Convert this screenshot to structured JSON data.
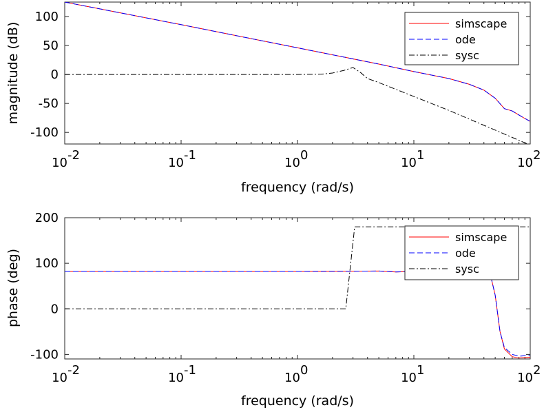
{
  "chart_data": [
    {
      "type": "line",
      "xscale": "log",
      "xlim": [
        0.01,
        100
      ],
      "ylim": [
        -120,
        125
      ],
      "xlabel": "frequency (rad/s)",
      "ylabel": "magnitude (dB)",
      "xtick_bases": [
        "10",
        "10",
        "10",
        "10",
        "10"
      ],
      "xtick_exps": [
        "-2",
        "-1",
        "0",
        "1",
        "2"
      ],
      "xtick_values": [
        0.01,
        0.1,
        1,
        10,
        100
      ],
      "ytick_labels": [
        "100",
        "50",
        "0",
        "-50",
        "-100"
      ],
      "ytick_values": [
        100,
        50,
        0,
        -50,
        -100
      ],
      "legend_position": "top-right",
      "series": [
        {
          "name": "simscape",
          "color": "#ff0000",
          "dash": "solid",
          "x": [
            0.01,
            0.1,
            1,
            5,
            10,
            20,
            30,
            40,
            50,
            60,
            70,
            80,
            90,
            100
          ],
          "y": [
            125,
            86,
            46,
            18,
            5,
            -7,
            -17,
            -27,
            -41,
            -59,
            -63,
            -70,
            -76,
            -81
          ]
        },
        {
          "name": "ode",
          "color": "#0000ff",
          "dash": "dashed",
          "x": [
            0.01,
            0.1,
            1,
            5,
            10,
            20,
            30,
            40,
            50,
            60,
            70,
            80,
            90,
            100
          ],
          "y": [
            125,
            86,
            46,
            18,
            5,
            -7,
            -17,
            -27,
            -41,
            -59,
            -63,
            -70,
            -76,
            -81
          ]
        },
        {
          "name": "sysc",
          "color": "#000000",
          "dash": "dashdot",
          "x": [
            0.01,
            0.1,
            1,
            1.6,
            2,
            2.5,
            3,
            3.5,
            4,
            5,
            10,
            20,
            50,
            100
          ],
          "y": [
            0,
            0,
            0,
            0.5,
            2.5,
            7,
            12,
            3,
            -7,
            -14,
            -38,
            -62,
            -96,
            -122
          ]
        }
      ]
    },
    {
      "type": "line",
      "xscale": "log",
      "xlim": [
        0.01,
        100
      ],
      "ylim": [
        -110,
        200
      ],
      "xlabel": "frequency (rad/s)",
      "ylabel": "phase (deg)",
      "xtick_bases": [
        "10",
        "10",
        "10",
        "10",
        "10"
      ],
      "xtick_exps": [
        "-2",
        "-1",
        "0",
        "1",
        "2"
      ],
      "xtick_values": [
        0.01,
        0.1,
        1,
        10,
        100
      ],
      "ytick_labels": [
        "200",
        "100",
        "0",
        "-100"
      ],
      "ytick_values": [
        200,
        100,
        0,
        -100
      ],
      "legend_position": "top-right",
      "series": [
        {
          "name": "simscape",
          "color": "#ff0000",
          "dash": "solid",
          "x": [
            0.01,
            1,
            5,
            7,
            10,
            20,
            40,
            45,
            50,
            55,
            60,
            70,
            80,
            100
          ],
          "y": [
            82,
            82,
            83,
            81,
            82,
            82,
            82,
            80,
            30,
            -50,
            -88,
            -105,
            -108,
            -106
          ]
        },
        {
          "name": "ode",
          "color": "#0000ff",
          "dash": "dashed",
          "x": [
            0.01,
            1,
            5,
            7,
            10,
            20,
            40,
            45,
            50,
            55,
            60,
            70,
            80,
            100
          ],
          "y": [
            82,
            82,
            83,
            81,
            82,
            82,
            82,
            80,
            30,
            -50,
            -85,
            -100,
            -104,
            -102
          ]
        },
        {
          "name": "sysc",
          "color": "#000000",
          "dash": "dashdot",
          "x": [
            0.01,
            2.6,
            3.1,
            100
          ],
          "y": [
            0,
            0,
            180,
            180
          ]
        }
      ]
    }
  ]
}
